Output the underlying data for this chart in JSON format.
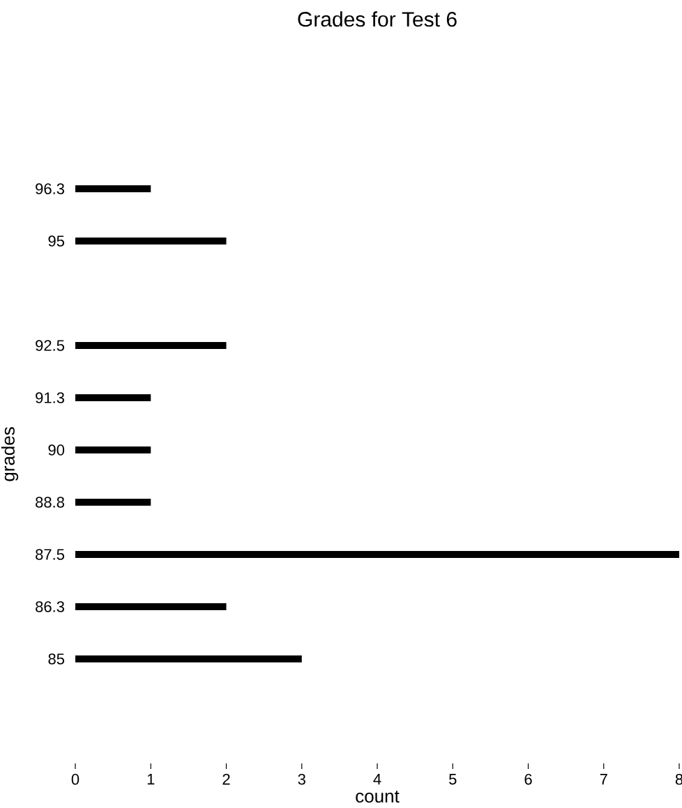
{
  "chart_data": {
    "type": "bar",
    "orientation": "horizontal",
    "title": "Grades for Test 6",
    "xlabel": "count",
    "ylabel": "grades",
    "x": [
      85,
      86.25,
      87.5,
      88.75,
      90,
      91.25,
      92.5,
      95,
      96.25
    ],
    "values": [
      3,
      2,
      8,
      1,
      1,
      1,
      2,
      2,
      1
    ],
    "color": "#000000",
    "xlim": [
      0,
      8
    ],
    "xticks": [
      0,
      1,
      2,
      3,
      4,
      5,
      6,
      7,
      8
    ],
    "ylim": [
      85,
      96.25
    ],
    "yticks": [
      85,
      {
        "value": 86.25,
        "label": "86.3"
      },
      87.5,
      {
        "value": 88.75,
        "label": "88.8"
      },
      90,
      {
        "value": 91.25,
        "label": "91.3"
      },
      92.5,
      95,
      {
        "value": 96.25,
        "label": "96.3"
      }
    ]
  }
}
